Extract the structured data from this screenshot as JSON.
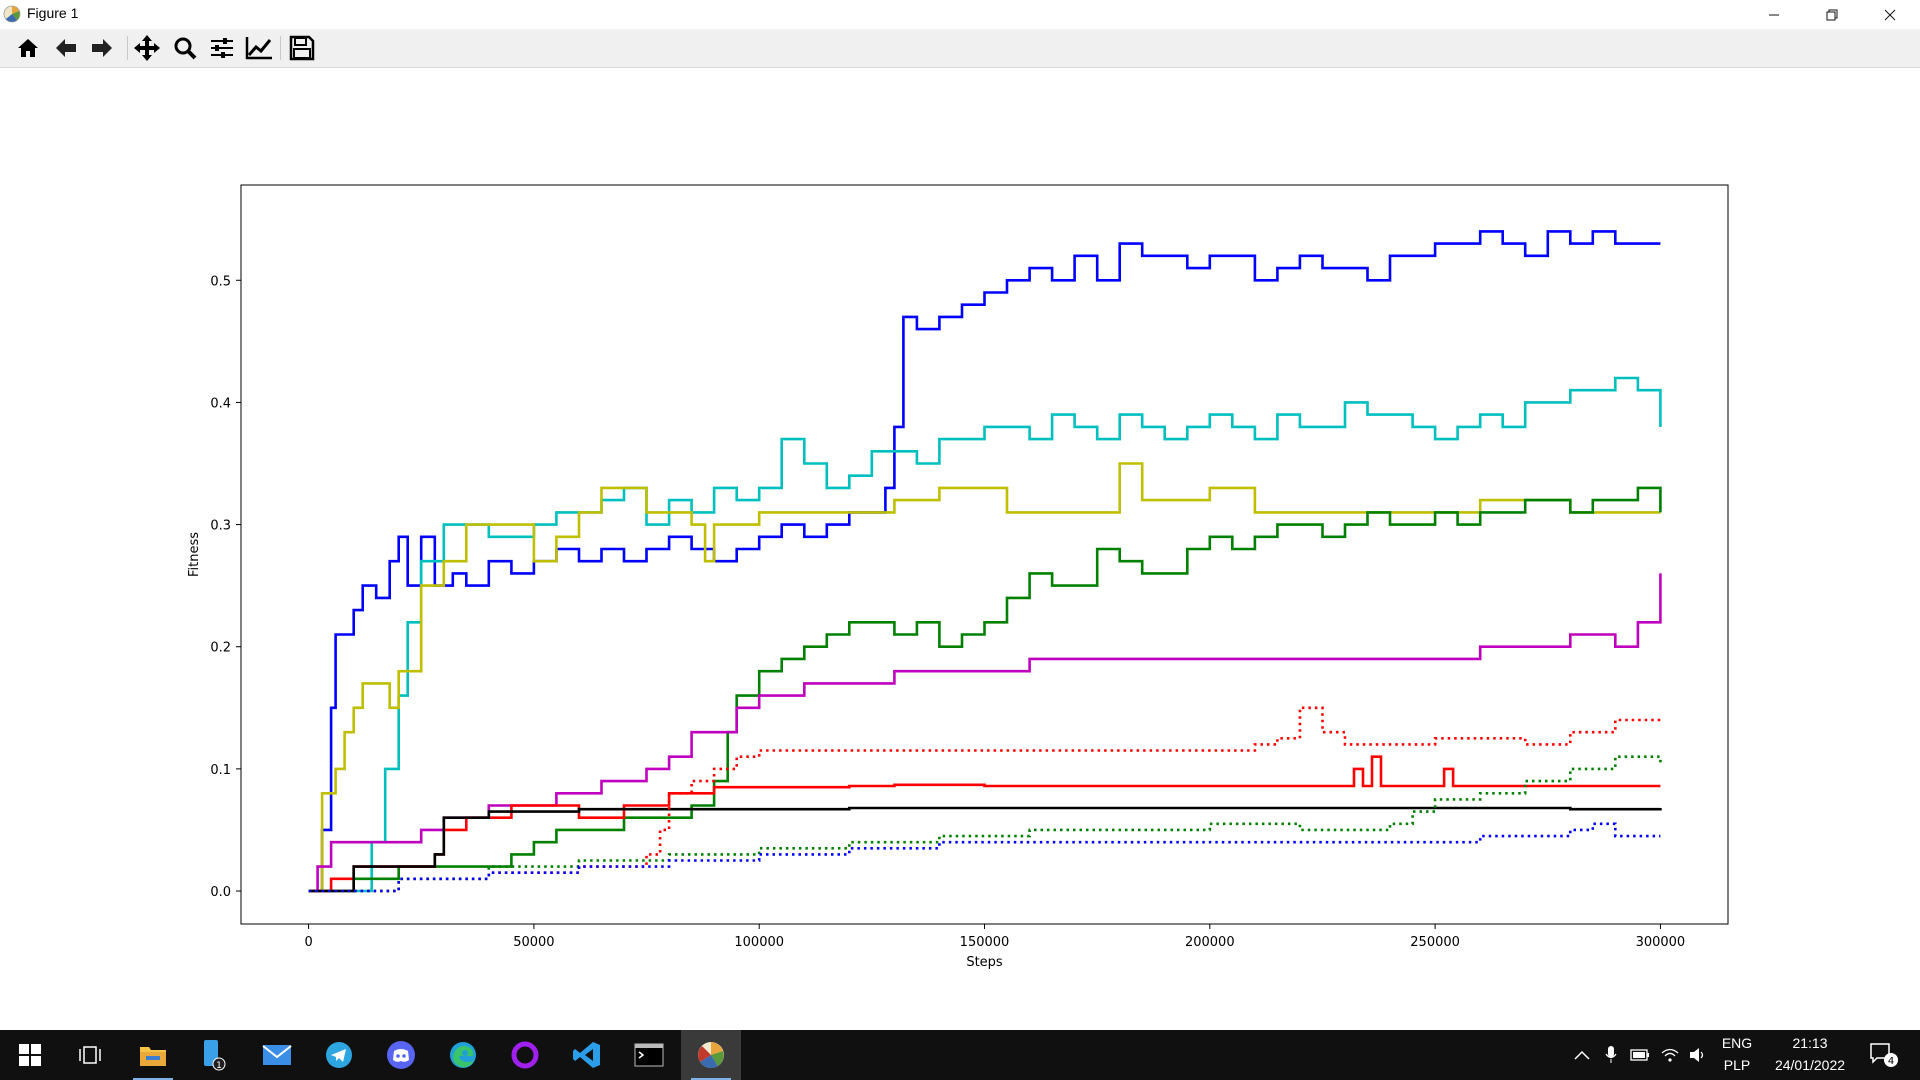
{
  "window": {
    "title": "Figure 1"
  },
  "toolbar": {
    "buttons": [
      {
        "name": "home-icon"
      },
      {
        "name": "back-arrow-icon"
      },
      {
        "name": "forward-arrow-icon"
      },
      {
        "name": "pan-icon"
      },
      {
        "name": "zoom-icon"
      },
      {
        "name": "configure-subplots-icon"
      },
      {
        "name": "edit-axis-icon"
      },
      {
        "name": "save-icon"
      }
    ]
  },
  "colors": {
    "blue": "#0000ff",
    "cyan": "#00bfbf",
    "olive": "#bfbf00",
    "green": "#008000",
    "magenta": "#bf00bf",
    "red": "#ff0000",
    "black": "#000000"
  },
  "chart_data": {
    "type": "line",
    "title": "",
    "xlabel": "Steps",
    "ylabel": "Fitness",
    "xlim": [
      -15000,
      315000
    ],
    "ylim": [
      -0.027,
      0.578
    ],
    "xticks": [
      0,
      50000,
      100000,
      150000,
      200000,
      250000,
      300000
    ],
    "xtick_labels": [
      "0",
      "50000",
      "100000",
      "150000",
      "200000",
      "250000",
      "300000"
    ],
    "yticks": [
      0.0,
      0.1,
      0.2,
      0.3,
      0.4,
      0.5
    ],
    "ytick_labels": [
      "0.0",
      "0.1",
      "0.2",
      "0.3",
      "0.4",
      "0.5"
    ],
    "grid": false,
    "series": [
      {
        "color": "blue",
        "style": "solid",
        "x": [
          0,
          3000,
          5000,
          6000,
          10000,
          12000,
          15000,
          18000,
          20000,
          22000,
          25000,
          28000,
          32000,
          35000,
          40000,
          45000,
          50000,
          55000,
          60000,
          65000,
          70000,
          75000,
          80000,
          85000,
          90000,
          95000,
          100000,
          105000,
          110000,
          115000,
          120000,
          125000,
          128000,
          130000,
          132000,
          135000,
          140000,
          145000,
          150000,
          155000,
          160000,
          165000,
          170000,
          175000,
          180000,
          185000,
          190000,
          195000,
          200000,
          205000,
          210000,
          215000,
          220000,
          225000,
          230000,
          235000,
          240000,
          245000,
          250000,
          255000,
          260000,
          265000,
          270000,
          275000,
          280000,
          285000,
          290000,
          295000,
          300000
        ],
        "y": [
          0,
          0.05,
          0.15,
          0.21,
          0.23,
          0.25,
          0.24,
          0.27,
          0.29,
          0.25,
          0.29,
          0.25,
          0.26,
          0.25,
          0.27,
          0.26,
          0.27,
          0.28,
          0.27,
          0.28,
          0.27,
          0.28,
          0.29,
          0.28,
          0.27,
          0.28,
          0.29,
          0.3,
          0.29,
          0.3,
          0.31,
          0.31,
          0.33,
          0.38,
          0.47,
          0.46,
          0.47,
          0.48,
          0.49,
          0.5,
          0.51,
          0.5,
          0.52,
          0.5,
          0.53,
          0.52,
          0.52,
          0.51,
          0.52,
          0.52,
          0.5,
          0.51,
          0.52,
          0.51,
          0.51,
          0.5,
          0.52,
          0.52,
          0.53,
          0.53,
          0.54,
          0.53,
          0.52,
          0.54,
          0.53,
          0.54,
          0.53,
          0.53,
          0.53
        ]
      },
      {
        "color": "cyan",
        "style": "solid",
        "x": [
          0,
          10000,
          14000,
          17000,
          20000,
          22000,
          25000,
          30000,
          35000,
          40000,
          45000,
          50000,
          55000,
          60000,
          65000,
          70000,
          75000,
          80000,
          85000,
          90000,
          95000,
          100000,
          105000,
          110000,
          115000,
          120000,
          125000,
          130000,
          135000,
          140000,
          145000,
          150000,
          155000,
          160000,
          165000,
          170000,
          175000,
          180000,
          185000,
          190000,
          195000,
          200000,
          205000,
          210000,
          215000,
          220000,
          225000,
          230000,
          235000,
          240000,
          245000,
          250000,
          255000,
          260000,
          265000,
          270000,
          275000,
          280000,
          285000,
          290000,
          295000,
          300000
        ],
        "y": [
          0,
          0.0,
          0.04,
          0.1,
          0.16,
          0.22,
          0.27,
          0.3,
          0.3,
          0.29,
          0.29,
          0.3,
          0.31,
          0.31,
          0.32,
          0.33,
          0.3,
          0.32,
          0.31,
          0.33,
          0.32,
          0.33,
          0.37,
          0.35,
          0.33,
          0.34,
          0.36,
          0.36,
          0.35,
          0.37,
          0.37,
          0.38,
          0.38,
          0.37,
          0.39,
          0.38,
          0.37,
          0.39,
          0.38,
          0.37,
          0.38,
          0.39,
          0.38,
          0.37,
          0.39,
          0.38,
          0.38,
          0.4,
          0.39,
          0.39,
          0.38,
          0.37,
          0.38,
          0.39,
          0.38,
          0.4,
          0.4,
          0.41,
          0.41,
          0.42,
          0.41,
          0.38
        ]
      },
      {
        "color": "olive",
        "style": "solid",
        "x": [
          0,
          3000,
          6000,
          8000,
          10000,
          12000,
          15000,
          18000,
          20000,
          25000,
          30000,
          35000,
          40000,
          45000,
          50000,
          55000,
          60000,
          65000,
          70000,
          75000,
          80000,
          85000,
          88000,
          90000,
          95000,
          100000,
          110000,
          120000,
          130000,
          140000,
          150000,
          155000,
          160000,
          170000,
          180000,
          185000,
          190000,
          200000,
          210000,
          220000,
          230000,
          240000,
          250000,
          260000,
          270000,
          280000,
          290000,
          300000
        ],
        "y": [
          0,
          0.08,
          0.1,
          0.13,
          0.15,
          0.17,
          0.17,
          0.15,
          0.18,
          0.25,
          0.27,
          0.3,
          0.3,
          0.3,
          0.27,
          0.29,
          0.31,
          0.33,
          0.33,
          0.31,
          0.31,
          0.3,
          0.27,
          0.3,
          0.3,
          0.31,
          0.31,
          0.31,
          0.32,
          0.33,
          0.33,
          0.31,
          0.31,
          0.31,
          0.35,
          0.32,
          0.32,
          0.33,
          0.31,
          0.31,
          0.31,
          0.31,
          0.31,
          0.32,
          0.32,
          0.31,
          0.31,
          0.31
        ]
      },
      {
        "color": "green",
        "style": "solid",
        "x": [
          0,
          10000,
          20000,
          30000,
          40000,
          45000,
          50000,
          55000,
          60000,
          70000,
          80000,
          85000,
          90000,
          93000,
          95000,
          100000,
          105000,
          110000,
          115000,
          120000,
          125000,
          130000,
          135000,
          140000,
          145000,
          150000,
          155000,
          160000,
          165000,
          170000,
          175000,
          180000,
          185000,
          190000,
          195000,
          200000,
          205000,
          210000,
          215000,
          220000,
          225000,
          230000,
          235000,
          240000,
          245000,
          250000,
          255000,
          260000,
          265000,
          270000,
          275000,
          280000,
          285000,
          290000,
          295000,
          300000
        ],
        "y": [
          0,
          0.01,
          0.02,
          0.02,
          0.02,
          0.03,
          0.04,
          0.05,
          0.05,
          0.06,
          0.06,
          0.07,
          0.09,
          0.13,
          0.16,
          0.18,
          0.19,
          0.2,
          0.21,
          0.22,
          0.22,
          0.21,
          0.22,
          0.2,
          0.21,
          0.22,
          0.24,
          0.26,
          0.25,
          0.25,
          0.28,
          0.27,
          0.26,
          0.26,
          0.28,
          0.29,
          0.28,
          0.29,
          0.3,
          0.3,
          0.29,
          0.3,
          0.31,
          0.3,
          0.3,
          0.31,
          0.3,
          0.31,
          0.31,
          0.32,
          0.32,
          0.31,
          0.32,
          0.32,
          0.33,
          0.31
        ]
      },
      {
        "color": "magenta",
        "style": "solid",
        "x": [
          0,
          2000,
          5000,
          10000,
          15000,
          20000,
          25000,
          28000,
          30000,
          35000,
          40000,
          45000,
          50000,
          55000,
          60000,
          65000,
          70000,
          75000,
          80000,
          85000,
          90000,
          95000,
          100000,
          110000,
          120000,
          130000,
          140000,
          150000,
          160000,
          170000,
          180000,
          190000,
          200000,
          210000,
          220000,
          230000,
          240000,
          250000,
          260000,
          270000,
          280000,
          290000,
          295000,
          300000
        ],
        "y": [
          0,
          0.02,
          0.04,
          0.04,
          0.04,
          0.04,
          0.05,
          0.05,
          0.06,
          0.06,
          0.07,
          0.07,
          0.07,
          0.08,
          0.08,
          0.09,
          0.09,
          0.1,
          0.11,
          0.13,
          0.13,
          0.15,
          0.16,
          0.17,
          0.17,
          0.18,
          0.18,
          0.18,
          0.19,
          0.19,
          0.19,
          0.19,
          0.19,
          0.19,
          0.19,
          0.19,
          0.19,
          0.19,
          0.2,
          0.2,
          0.21,
          0.2,
          0.22,
          0.26
        ]
      },
      {
        "color": "red",
        "style": "solid",
        "x": [
          0,
          5000,
          10000,
          20000,
          28000,
          30000,
          35000,
          40000,
          45000,
          50000,
          55000,
          60000,
          65000,
          70000,
          75000,
          80000,
          85000,
          90000,
          95000,
          100000,
          110000,
          120000,
          130000,
          140000,
          150000,
          160000,
          170000,
          180000,
          190000,
          200000,
          210000,
          220000,
          230000,
          232000,
          234000,
          236000,
          238000,
          240000,
          250000,
          252000,
          254000,
          260000,
          270000,
          280000,
          290000,
          300000
        ],
        "y": [
          0,
          0.01,
          0.02,
          0.02,
          0.03,
          0.05,
          0.06,
          0.06,
          0.07,
          0.07,
          0.07,
          0.06,
          0.06,
          0.07,
          0.07,
          0.08,
          0.08,
          0.085,
          0.085,
          0.085,
          0.085,
          0.086,
          0.087,
          0.087,
          0.086,
          0.086,
          0.086,
          0.086,
          0.086,
          0.086,
          0.086,
          0.086,
          0.086,
          0.1,
          0.086,
          0.11,
          0.086,
          0.086,
          0.086,
          0.1,
          0.086,
          0.086,
          0.086,
          0.086,
          0.086,
          0.086
        ]
      },
      {
        "color": "black",
        "style": "solid",
        "x": [
          0,
          10000,
          20000,
          28000,
          30000,
          40000,
          50000,
          60000,
          70000,
          80000,
          90000,
          100000,
          120000,
          140000,
          160000,
          180000,
          200000,
          220000,
          240000,
          260000,
          280000,
          300000
        ],
        "y": [
          0,
          0.02,
          0.02,
          0.03,
          0.06,
          0.065,
          0.065,
          0.067,
          0.067,
          0.067,
          0.067,
          0.067,
          0.068,
          0.068,
          0.068,
          0.068,
          0.068,
          0.068,
          0.068,
          0.068,
          0.067,
          0.068
        ]
      },
      {
        "color": "red",
        "style": "dotted",
        "x": [
          0,
          20000,
          40000,
          60000,
          70000,
          75000,
          78000,
          80000,
          85000,
          90000,
          95000,
          100000,
          120000,
          140000,
          160000,
          180000,
          200000,
          205000,
          210000,
          215000,
          220000,
          225000,
          230000,
          240000,
          250000,
          260000,
          270000,
          280000,
          290000,
          300000
        ],
        "y": [
          0,
          0.01,
          0.015,
          0.02,
          0.02,
          0.03,
          0.05,
          0.08,
          0.09,
          0.1,
          0.11,
          0.115,
          0.115,
          0.115,
          0.115,
          0.115,
          0.115,
          0.115,
          0.12,
          0.125,
          0.15,
          0.13,
          0.12,
          0.12,
          0.125,
          0.125,
          0.12,
          0.13,
          0.14,
          0.14
        ]
      },
      {
        "color": "green",
        "style": "dotted",
        "x": [
          0,
          20000,
          40000,
          60000,
          80000,
          100000,
          120000,
          140000,
          160000,
          180000,
          200000,
          220000,
          240000,
          245000,
          250000,
          260000,
          270000,
          280000,
          290000,
          300000
        ],
        "y": [
          0,
          0.01,
          0.02,
          0.025,
          0.03,
          0.035,
          0.04,
          0.045,
          0.05,
          0.05,
          0.055,
          0.05,
          0.055,
          0.065,
          0.075,
          0.08,
          0.09,
          0.1,
          0.11,
          0.105
        ]
      },
      {
        "color": "blue",
        "style": "dotted",
        "x": [
          0,
          20000,
          40000,
          60000,
          80000,
          100000,
          120000,
          140000,
          160000,
          180000,
          200000,
          220000,
          240000,
          260000,
          280000,
          285000,
          290000,
          300000
        ],
        "y": [
          0,
          0.01,
          0.015,
          0.02,
          0.025,
          0.03,
          0.035,
          0.04,
          0.04,
          0.04,
          0.04,
          0.04,
          0.04,
          0.045,
          0.05,
          0.055,
          0.045,
          0.045
        ]
      }
    ]
  },
  "taskbar": {
    "apps": [
      {
        "name": "start-button-icon"
      },
      {
        "name": "task-view-icon"
      },
      {
        "name": "file-explorer-icon"
      },
      {
        "name": "phone-app-icon",
        "badge": "1"
      },
      {
        "name": "mail-icon"
      },
      {
        "name": "telegram-icon"
      },
      {
        "name": "discord-icon"
      },
      {
        "name": "edge-icon"
      },
      {
        "name": "cortana-ring-icon"
      },
      {
        "name": "vscode-icon"
      },
      {
        "name": "terminal-icon"
      },
      {
        "name": "matplotlib-figure-icon"
      }
    ],
    "tray": {
      "lang_top": "ENG",
      "lang_bottom": "PLP",
      "time": "21:13",
      "date": "24/01/2022",
      "notifications": "4"
    }
  }
}
